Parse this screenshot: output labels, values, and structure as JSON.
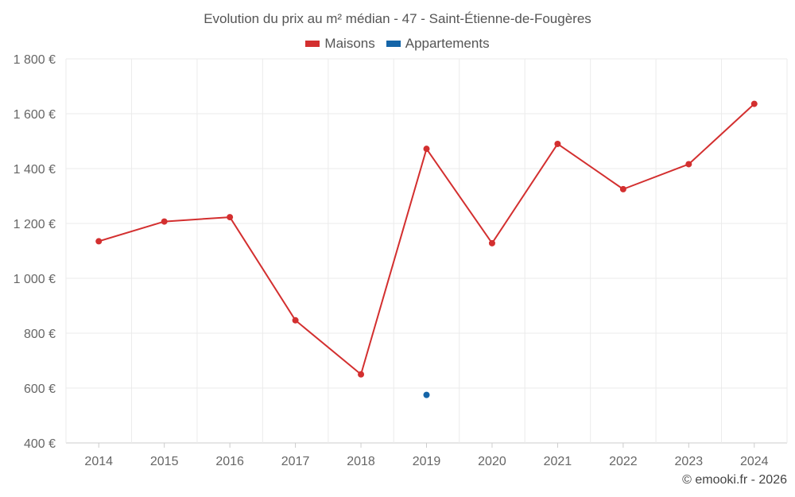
{
  "chart_data": {
    "type": "line",
    "title": "Evolution du prix au m² médian - 47 - Saint-Étienne-de-Fougères",
    "categories": [
      "2014",
      "2015",
      "2016",
      "2017",
      "2018",
      "2019",
      "2020",
      "2021",
      "2022",
      "2023",
      "2024"
    ],
    "series": [
      {
        "name": "Maisons",
        "color": "#d32f2f",
        "values": [
          1135,
          1207,
          1223,
          847,
          650,
          1472,
          1128,
          1490,
          1325,
          1416,
          1636
        ]
      },
      {
        "name": "Appartements",
        "color": "#1565a8",
        "values": [
          null,
          null,
          null,
          null,
          null,
          575,
          null,
          null,
          null,
          null,
          null
        ]
      }
    ],
    "ylim": [
      400,
      1800
    ],
    "yticks": [
      {
        "value": 400,
        "label": "400 €"
      },
      {
        "value": 600,
        "label": "600 €"
      },
      {
        "value": 800,
        "label": "800 €"
      },
      {
        "value": 1000,
        "label": "1 000 €"
      },
      {
        "value": 1200,
        "label": "1 200 €"
      },
      {
        "value": 1400,
        "label": "1 400 €"
      },
      {
        "value": 1600,
        "label": "1 600 €"
      },
      {
        "value": 1800,
        "label": "1 800 €"
      }
    ],
    "grid": true,
    "legend_position": "top-center"
  },
  "credit": "© emooki.fr - 2026"
}
